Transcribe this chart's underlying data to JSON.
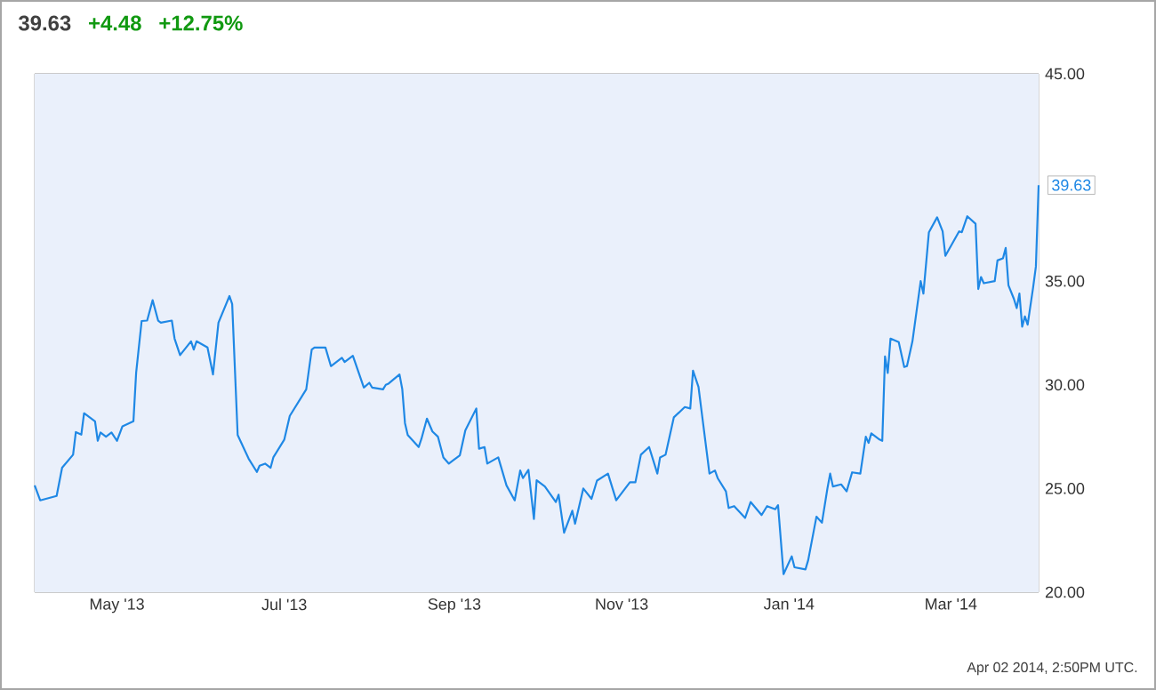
{
  "chart_data": {
    "type": "line",
    "title": "39.63",
    "annotations": [
      "+4.48",
      "+12.75%",
      "Apr 02 2014, 2:50PM UTC.",
      {
        "text": "39.63",
        "x": "2014-04-02",
        "y": 39.63
      }
    ],
    "x": [
      "2013-04-01",
      "2013-04-03",
      "2013-04-09",
      "2013-04-11",
      "2013-04-15",
      "2013-04-16",
      "2013-04-18",
      "2013-04-19",
      "2013-04-23",
      "2013-04-24",
      "2013-04-25",
      "2013-04-27",
      "2013-04-29",
      "2013-05-01",
      "2013-05-03",
      "2013-05-07",
      "2013-05-08",
      "2013-05-10",
      "2013-05-12",
      "2013-05-14",
      "2013-05-16",
      "2013-05-17",
      "2013-05-21",
      "2013-05-22",
      "2013-05-24",
      "2013-05-28",
      "2013-05-29",
      "2013-05-30",
      "2013-06-03",
      "2013-06-05",
      "2013-06-07",
      "2013-06-11",
      "2013-06-12",
      "2013-06-14",
      "2013-06-18",
      "2013-06-21",
      "2013-06-22",
      "2013-06-24",
      "2013-06-26",
      "2013-06-27",
      "2013-07-01",
      "2013-07-03",
      "2013-07-09",
      "2013-07-11",
      "2013-07-12",
      "2013-07-16",
      "2013-07-18",
      "2013-07-22",
      "2013-07-23",
      "2013-07-26",
      "2013-07-30",
      "2013-08-01",
      "2013-08-02",
      "2013-08-06",
      "2013-08-07",
      "2013-08-08",
      "2013-08-12",
      "2013-08-13",
      "2013-08-14",
      "2013-08-15",
      "2013-08-19",
      "2013-08-20",
      "2013-08-22",
      "2013-08-24",
      "2013-08-26",
      "2013-08-28",
      "2013-08-30",
      "2013-09-03",
      "2013-09-05",
      "2013-09-09",
      "2013-09-10",
      "2013-09-12",
      "2013-09-13",
      "2013-09-17",
      "2013-09-20",
      "2013-09-23",
      "2013-09-25",
      "2013-09-26",
      "2013-09-28",
      "2013-09-30",
      "2013-10-01",
      "2013-10-04",
      "2013-10-08",
      "2013-10-09",
      "2013-10-11",
      "2013-10-14",
      "2013-10-15",
      "2013-10-18",
      "2013-10-21",
      "2013-10-23",
      "2013-10-27",
      "2013-10-30",
      "2013-11-04",
      "2013-11-06",
      "2013-11-08",
      "2013-11-11",
      "2013-11-14",
      "2013-11-15",
      "2013-11-17",
      "2013-11-20",
      "2013-11-24",
      "2013-11-26",
      "2013-11-27",
      "2013-11-29",
      "2013-12-03",
      "2013-12-05",
      "2013-12-06",
      "2013-12-09",
      "2013-12-10",
      "2013-12-12",
      "2013-12-16",
      "2013-12-18",
      "2013-12-22",
      "2013-12-24",
      "2013-12-27",
      "2013-12-28",
      "2013-12-30",
      "2014-01-02",
      "2014-01-03",
      "2014-01-07",
      "2014-01-08",
      "2014-01-11",
      "2014-01-13",
      "2014-01-15",
      "2014-01-16",
      "2014-01-17",
      "2014-01-20",
      "2014-01-22",
      "2014-01-24",
      "2014-01-27",
      "2014-01-29",
      "2014-01-30",
      "2014-01-31",
      "2014-02-03",
      "2014-02-04",
      "2014-02-05",
      "2014-02-06",
      "2014-02-07",
      "2014-02-10",
      "2014-02-12",
      "2014-02-13",
      "2014-02-15",
      "2014-02-18",
      "2014-02-19",
      "2014-02-21",
      "2014-02-24",
      "2014-02-26",
      "2014-02-27",
      "2014-03-04",
      "2014-03-05",
      "2014-03-07",
      "2014-03-10",
      "2014-03-11",
      "2014-03-12",
      "2014-03-13",
      "2014-03-17",
      "2014-03-18",
      "2014-03-20",
      "2014-03-21",
      "2014-03-22",
      "2014-03-24",
      "2014-03-25",
      "2014-03-26",
      "2014-03-27",
      "2014-03-28",
      "2014-03-29",
      "2014-03-31",
      "2014-04-01",
      "2014-04-02"
    ],
    "values": [
      25.15,
      24.43,
      24.64,
      26.0,
      26.63,
      27.72,
      27.6,
      28.63,
      28.24,
      27.3,
      27.7,
      27.5,
      27.7,
      27.3,
      28.0,
      28.24,
      30.6,
      33.08,
      33.1,
      34.08,
      33.1,
      33.0,
      33.1,
      32.23,
      31.43,
      32.1,
      31.7,
      32.1,
      31.8,
      30.5,
      33.0,
      34.28,
      33.9,
      27.58,
      26.44,
      25.8,
      26.1,
      26.2,
      26.0,
      26.5,
      27.36,
      28.5,
      29.78,
      31.7,
      31.8,
      31.8,
      30.9,
      31.3,
      31.1,
      31.4,
      29.87,
      30.1,
      29.87,
      29.78,
      30.0,
      30.06,
      30.5,
      29.8,
      28.15,
      27.58,
      27.0,
      27.4,
      28.37,
      27.75,
      27.5,
      26.5,
      26.2,
      26.6,
      27.8,
      28.86,
      26.92,
      27.0,
      26.2,
      26.5,
      25.15,
      24.43,
      25.87,
      25.5,
      25.9,
      23.53,
      25.4,
      25.1,
      24.35,
      24.7,
      22.87,
      23.93,
      23.3,
      25.0,
      24.5,
      25.38,
      25.72,
      24.43,
      25.3,
      25.3,
      26.63,
      27.0,
      25.72,
      26.5,
      26.63,
      28.43,
      28.93,
      28.86,
      30.68,
      29.9,
      25.72,
      25.87,
      25.5,
      24.86,
      24.06,
      24.15,
      23.58,
      24.35,
      23.72,
      24.15,
      24.0,
      24.2,
      20.87,
      21.73,
      21.2,
      21.1,
      21.55,
      23.64,
      23.35,
      25.0,
      25.72,
      25.1,
      25.2,
      24.86,
      25.78,
      25.72,
      27.5,
      27.2,
      27.66,
      27.36,
      27.3,
      31.37,
      30.57,
      32.23,
      32.06,
      30.86,
      30.9,
      32.1,
      35.0,
      34.4,
      37.36,
      38.08,
      37.4,
      36.22,
      37.4,
      37.36,
      38.13,
      37.77,
      34.62,
      35.2,
      34.9,
      35.0,
      36.0,
      36.1,
      36.6,
      34.8,
      34.14,
      33.7,
      34.4,
      32.8,
      33.3,
      32.9,
      34.7,
      35.7,
      39.63
    ],
    "color": "#1f88e5",
    "xlim": [
      "2013-04-01",
      "2014-04-02"
    ],
    "xticks": [
      {
        "value": "2013-05-01",
        "label": "May '13"
      },
      {
        "value": "2013-07-01",
        "label": "Jul '13"
      },
      {
        "value": "2013-09-01",
        "label": "Sep '13"
      },
      {
        "value": "2013-11-01",
        "label": "Nov '13"
      },
      {
        "value": "2014-01-01",
        "label": "Jan '14"
      },
      {
        "value": "2014-03-01",
        "label": "Mar '14"
      }
    ],
    "ylim": [
      20,
      45
    ],
    "yticks": [
      {
        "value": 20,
        "label": "20.00"
      },
      {
        "value": 25,
        "label": "25.00"
      },
      {
        "value": 30,
        "label": "30.00"
      },
      {
        "value": 35,
        "label": "35.00"
      },
      {
        "value": 40,
        "label": null
      },
      {
        "value": 45,
        "label": "45.00"
      }
    ],
    "grid": true
  }
}
